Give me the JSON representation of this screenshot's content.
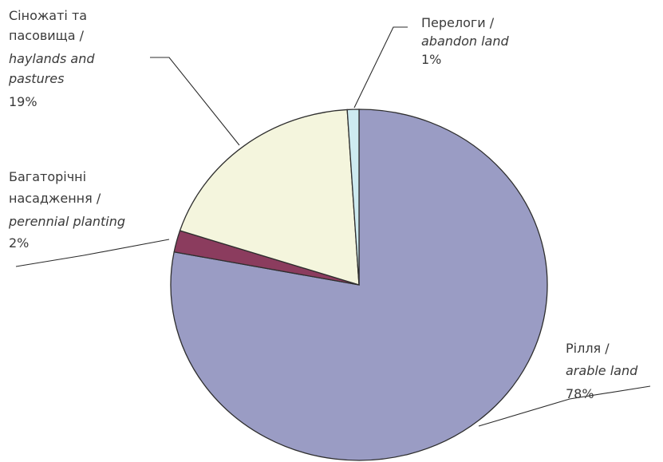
{
  "chart_data": {
    "type": "pie",
    "title": "",
    "slices": [
      {
        "key": "arable",
        "label_uk": "Рілля /",
        "label_en": "arable land",
        "pct_label": "78%",
        "value": 78,
        "color": "#9a9cc4"
      },
      {
        "key": "perennial",
        "label_uk": "Багаторічні насадження /",
        "label_uk_lines": [
          "Багаторічні",
          "насадження /"
        ],
        "label_en": "perennial planting",
        "pct_label": "2%",
        "value": 2,
        "color": "#8b3c5e"
      },
      {
        "key": "haylands",
        "label_uk": "Сіножаті та пасовища /",
        "label_uk_lines": [
          "Сіножаті та",
          "пасовища /"
        ],
        "label_en": "haylands and pastures",
        "label_en_lines": [
          "haylands and",
          "pastures"
        ],
        "pct_label": "19%",
        "value": 19,
        "color": "#f4f5dd"
      },
      {
        "key": "abandon",
        "label_uk": "Перелоги /",
        "label_en": "abandon land",
        "pct_label": "1%",
        "value": 1,
        "color": "#cdeaf0"
      }
    ]
  }
}
